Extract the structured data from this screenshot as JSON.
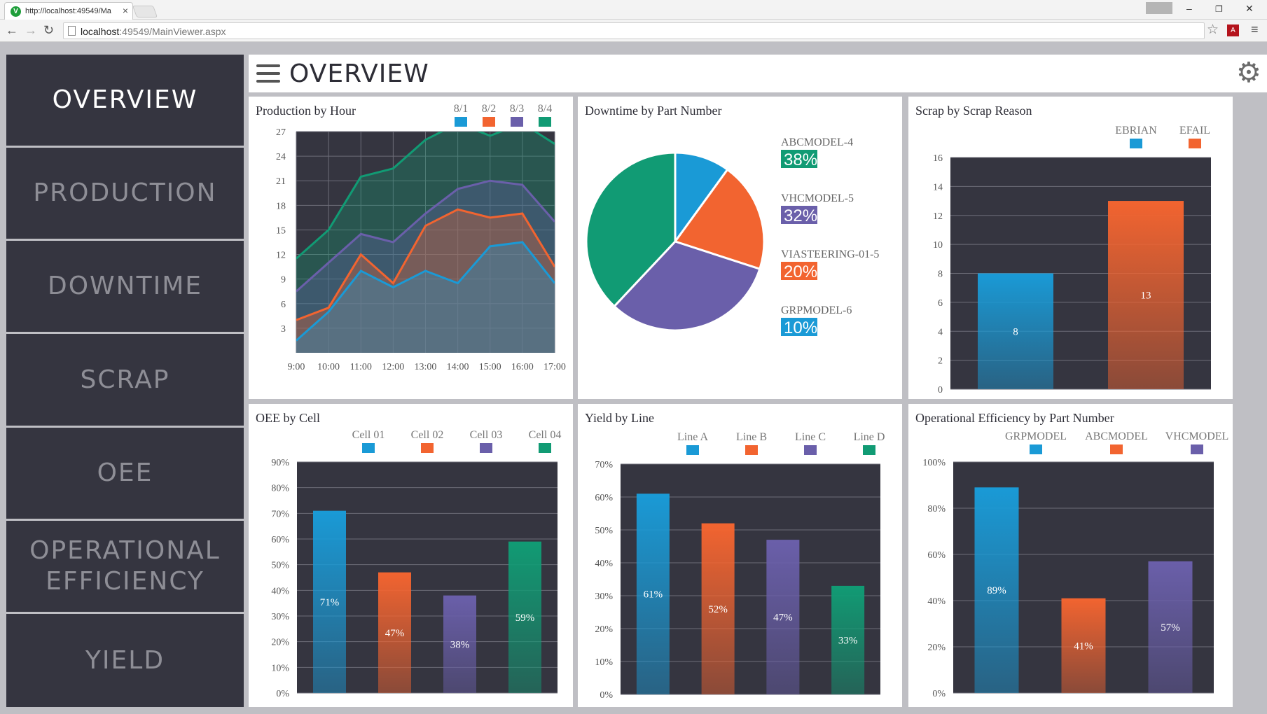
{
  "browser": {
    "tab_title": "http://localhost:49549/Ma",
    "url_host": "localhost",
    "url_rest": ":49549/MainViewer.aspx"
  },
  "sidebar": {
    "items": [
      {
        "label": "OVERVIEW",
        "active": true
      },
      {
        "label": "PRODUCTION",
        "active": false
      },
      {
        "label": "DOWNTIME",
        "active": false
      },
      {
        "label": "SCRAP",
        "active": false
      },
      {
        "label": "OEE",
        "active": false
      },
      {
        "label": "OPERATIONAL\nEFFICIENCY",
        "active": false
      },
      {
        "label": "YIELD",
        "active": false
      }
    ]
  },
  "header": {
    "title": "OVERVIEW"
  },
  "colors": {
    "blue": "#1a9ad6",
    "orange": "#f26430",
    "purple": "#6a5faa",
    "green": "#119b74",
    "plot_bg": "#353540"
  },
  "panels": {
    "production": {
      "title": "Production by Hour"
    },
    "downtime": {
      "title": "Downtime by Part Number"
    },
    "scrap": {
      "title": "Scrap by Scrap Reason"
    },
    "oee": {
      "title": "OEE by Cell"
    },
    "yield": {
      "title": "Yield by Line"
    },
    "opeff": {
      "title": "Operational Efficiency by Part Number"
    }
  },
  "chart_data": [
    {
      "id": "production",
      "type": "area",
      "x": [
        "9:00",
        "10:00",
        "11:00",
        "12:00",
        "13:00",
        "14:00",
        "15:00",
        "16:00",
        "17:00"
      ],
      "yticks": [
        3,
        6,
        9,
        12,
        15,
        18,
        21,
        24,
        27
      ],
      "ylim": [
        0,
        27
      ],
      "grid": true,
      "series": [
        {
          "name": "8/4",
          "color": "green",
          "values": [
            11.5,
            15,
            21.5,
            22.5,
            26,
            28,
            26.5,
            28,
            25.5
          ]
        },
        {
          "name": "8/3",
          "color": "purple",
          "values": [
            7.5,
            11,
            14.5,
            13.5,
            17,
            20,
            21,
            20.5,
            16
          ]
        },
        {
          "name": "8/2",
          "color": "orange",
          "values": [
            4,
            5.5,
            12,
            8.5,
            15.5,
            17.5,
            16.5,
            17,
            10.5
          ]
        },
        {
          "name": "8/1",
          "color": "blue",
          "values": [
            1.5,
            5,
            10,
            8,
            10,
            8.5,
            13,
            13.5,
            8.5
          ]
        }
      ],
      "legend": [
        "8/1",
        "8/2",
        "8/3",
        "8/4"
      ],
      "legend_position": "top-right"
    },
    {
      "id": "downtime",
      "type": "pie",
      "slices": [
        {
          "label": "ABCMODEL-4",
          "value": 38,
          "pct": "38%",
          "color": "green"
        },
        {
          "label": "VHCMODEL-5",
          "value": 32,
          "pct": "32%",
          "color": "purple"
        },
        {
          "label": "VIASTEERING-01-5",
          "value": 20,
          "pct": "20%",
          "color": "orange"
        },
        {
          "label": "GRPMODEL-6",
          "value": 10,
          "pct": "10%",
          "color": "blue"
        }
      ],
      "legend_position": "right"
    },
    {
      "id": "scrap",
      "type": "bar",
      "categories": [
        "EBRIAN",
        "EFAIL"
      ],
      "values": [
        8,
        13
      ],
      "labels": [
        "8",
        "13"
      ],
      "colors": [
        "blue",
        "orange"
      ],
      "yticks": [
        0,
        2,
        4,
        6,
        8,
        10,
        12,
        14,
        16
      ],
      "ylim": [
        0,
        16
      ],
      "grid": true,
      "legend_position": "top-right"
    },
    {
      "id": "oee",
      "type": "bar",
      "categories": [
        "Cell 01",
        "Cell 02",
        "Cell 03",
        "Cell 04"
      ],
      "values": [
        71,
        47,
        38,
        59
      ],
      "labels": [
        "71%",
        "47%",
        "38%",
        "59%"
      ],
      "colors": [
        "blue",
        "orange",
        "purple",
        "green"
      ],
      "yticks": [
        "0%",
        "10%",
        "20%",
        "30%",
        "40%",
        "50%",
        "60%",
        "70%",
        "80%",
        "90%"
      ],
      "ylim": [
        0,
        90
      ],
      "grid": true,
      "legend_position": "top"
    },
    {
      "id": "yield",
      "type": "bar",
      "categories": [
        "Line A",
        "Line B",
        "Line C",
        "Line D"
      ],
      "values": [
        61,
        52,
        47,
        33
      ],
      "labels": [
        "61%",
        "52%",
        "47%",
        "33%"
      ],
      "colors": [
        "blue",
        "orange",
        "purple",
        "green"
      ],
      "yticks": [
        "0%",
        "10%",
        "20%",
        "30%",
        "40%",
        "50%",
        "60%",
        "70%"
      ],
      "ylim": [
        0,
        70
      ],
      "grid": true,
      "legend_position": "top"
    },
    {
      "id": "opeff",
      "type": "bar",
      "categories": [
        "GRPMODEL",
        "ABCMODEL",
        "VHCMODEL"
      ],
      "values": [
        89,
        41,
        57
      ],
      "labels": [
        "89%",
        "41%",
        "57%"
      ],
      "colors": [
        "blue",
        "orange",
        "purple"
      ],
      "yticks": [
        "0%",
        "20%",
        "40%",
        "60%",
        "80%",
        "100%"
      ],
      "ylim": [
        0,
        100
      ],
      "grid": true,
      "legend_position": "top"
    }
  ]
}
